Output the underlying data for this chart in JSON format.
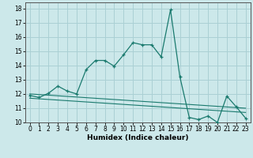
{
  "xlabel": "Humidex (Indice chaleur)",
  "background_color": "#cce8ea",
  "grid_color": "#aad0d4",
  "line_color": "#1a7a6e",
  "xlim": [
    -0.5,
    23.5
  ],
  "ylim": [
    10,
    18.4
  ],
  "xticks": [
    0,
    1,
    2,
    3,
    4,
    5,
    6,
    7,
    8,
    9,
    10,
    11,
    12,
    13,
    14,
    15,
    16,
    17,
    18,
    19,
    20,
    21,
    22,
    23
  ],
  "yticks": [
    10,
    11,
    12,
    13,
    14,
    15,
    16,
    17,
    18
  ],
  "series_main_x": [
    0,
    1,
    2,
    3,
    4,
    5,
    6,
    7,
    8,
    9,
    10,
    11,
    12,
    13,
    14,
    15,
    16,
    17,
    18,
    19,
    20,
    21,
    22,
    23
  ],
  "series_main_y": [
    11.9,
    11.75,
    12.05,
    12.55,
    12.2,
    12.0,
    13.7,
    14.35,
    14.35,
    13.95,
    14.75,
    15.6,
    15.45,
    15.45,
    14.6,
    17.9,
    13.2,
    10.35,
    10.2,
    10.45,
    10.0,
    11.85,
    11.1,
    10.3
  ],
  "trend1_x": [
    0,
    23
  ],
  "trend1_y": [
    12.0,
    11.0
  ],
  "trend2_x": [
    0,
    23
  ],
  "trend2_y": [
    11.7,
    10.7
  ],
  "tick_fontsize": 5.5,
  "xlabel_fontsize": 6.5
}
